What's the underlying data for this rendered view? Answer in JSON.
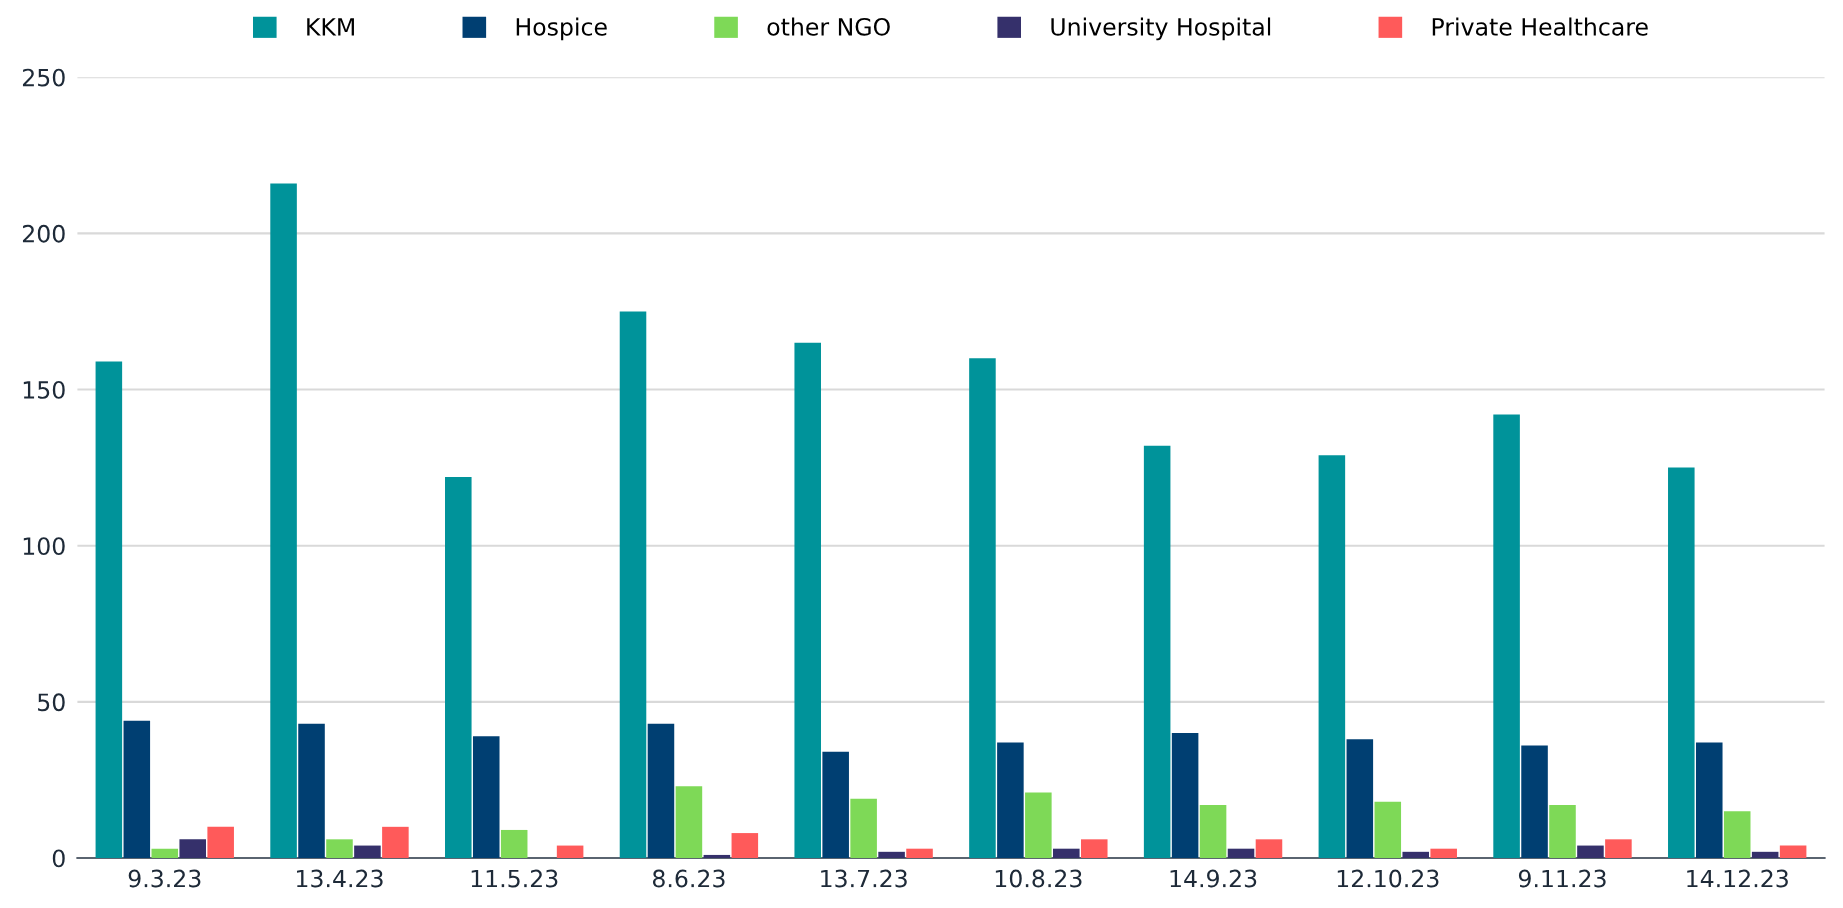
{
  "chart_data": {
    "type": "bar",
    "categories": [
      "9.3.23",
      "13.4.23",
      "11.5.23",
      "8.6.23",
      "13.7.23",
      "10.8.23",
      "14.9.23",
      "12.10.23",
      "9.11.23",
      "14.12.23"
    ],
    "series": [
      {
        "name": "KKM",
        "color": "#00939a",
        "values": [
          159,
          216,
          122,
          175,
          165,
          160,
          132,
          129,
          142,
          125
        ]
      },
      {
        "name": "Hospice",
        "color": "#003f72",
        "values": [
          44,
          43,
          39,
          43,
          34,
          37,
          40,
          38,
          36,
          37
        ]
      },
      {
        "name": "other NGO",
        "color": "#7ed957",
        "values": [
          3,
          6,
          9,
          23,
          19,
          21,
          17,
          18,
          17,
          15
        ]
      },
      {
        "name": "University Hospital",
        "color": "#35306b",
        "values": [
          6,
          4,
          0,
          1,
          2,
          3,
          3,
          2,
          4,
          2
        ]
      },
      {
        "name": "Private Healthcare",
        "color": "#ff5a5a",
        "values": [
          10,
          10,
          4,
          8,
          3,
          6,
          6,
          3,
          6,
          4
        ]
      }
    ],
    "ylim": [
      0,
      250
    ],
    "yticks": [
      0,
      50,
      100,
      150,
      200,
      250
    ],
    "grid": "y",
    "legend": "top"
  }
}
